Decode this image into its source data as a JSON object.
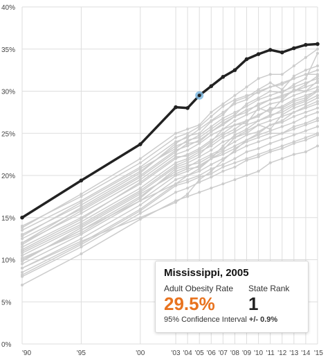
{
  "chart_data": {
    "type": "line",
    "x_tick_labels": [
      "'90",
      "'95",
      "'00",
      "'03",
      "'04",
      "'05",
      "'06",
      "'07",
      "'08",
      "'09",
      "'10",
      "'11",
      "'12",
      "'13",
      "'14",
      "'15"
    ],
    "x_ticks": [
      1990,
      1995,
      2000,
      2003,
      2004,
      2005,
      2006,
      2007,
      2008,
      2009,
      2010,
      2011,
      2012,
      2013,
      2014,
      2015
    ],
    "y_tick_labels": [
      "0%",
      "5%",
      "10%",
      "15%",
      "20%",
      "25%",
      "30%",
      "35%",
      "40%"
    ],
    "y_ticks": [
      0,
      5,
      10,
      15,
      20,
      25,
      30,
      35,
      40
    ],
    "xlim": [
      1990,
      2015
    ],
    "ylim": [
      0,
      40
    ],
    "grid": true,
    "highlight_series": {
      "name": "Mississippi",
      "x": [
        1990,
        1995,
        2000,
        2003,
        2004,
        2005,
        2006,
        2007,
        2008,
        2009,
        2010,
        2011,
        2012,
        2013,
        2014,
        2015
      ],
      "values": [
        15.0,
        19.4,
        23.7,
        28.1,
        28.0,
        29.5,
        30.6,
        31.7,
        32.5,
        33.8,
        34.4,
        34.9,
        34.6,
        35.1,
        35.5,
        35.6
      ],
      "color": "#222222"
    },
    "highlight_point": {
      "x": 2005,
      "y": 29.5,
      "color": "#7fb8e0"
    },
    "background_series_color": "#cccccc",
    "background_series": [
      {
        "x": [
          1990,
          1995,
          2000,
          2003,
          2004,
          2005,
          2006,
          2007,
          2008,
          2009,
          2010,
          2011,
          2012,
          2013,
          2014,
          2015
        ],
        "values": [
          14.0,
          17.5,
          21.5,
          24.5,
          25.0,
          25.8,
          27.0,
          28.2,
          29.0,
          29.5,
          29.8,
          30.5,
          30.8,
          31.5,
          32.0,
          32.5
        ]
      },
      {
        "x": [
          1990,
          1995,
          2000,
          2003,
          2004,
          2005,
          2006,
          2007,
          2008,
          2009,
          2010,
          2011,
          2012,
          2013,
          2014,
          2015
        ],
        "values": [
          13.5,
          17.0,
          21.0,
          24.0,
          24.5,
          25.5,
          26.5,
          27.5,
          28.5,
          29.0,
          30.0,
          30.5,
          31.0,
          31.5,
          32.0,
          32.0
        ]
      },
      {
        "x": [
          1990,
          1995,
          2000,
          2003,
          2004,
          2005,
          2006,
          2007,
          2008,
          2009,
          2010,
          2011,
          2012,
          2013,
          2014,
          2015
        ],
        "values": [
          13.0,
          16.5,
          20.5,
          23.5,
          24.0,
          24.8,
          25.8,
          26.8,
          27.5,
          28.2,
          29.0,
          29.5,
          30.0,
          30.5,
          31.0,
          31.5
        ]
      },
      {
        "x": [
          1990,
          1995,
          2000,
          2003,
          2004,
          2005,
          2006,
          2007,
          2008,
          2009,
          2010,
          2011,
          2012,
          2013,
          2014,
          2015
        ],
        "values": [
          12.5,
          16.0,
          20.0,
          23.0,
          23.5,
          24.2,
          25.2,
          26.2,
          27.0,
          27.8,
          28.3,
          29.0,
          29.3,
          30.0,
          30.5,
          31.0
        ]
      },
      {
        "x": [
          1990,
          1995,
          2000,
          2003,
          2004,
          2005,
          2006,
          2007,
          2008,
          2009,
          2010,
          2011,
          2012,
          2013,
          2014,
          2015
        ],
        "values": [
          12.0,
          15.5,
          19.5,
          22.5,
          23.0,
          23.8,
          24.8,
          25.5,
          26.5,
          27.2,
          27.8,
          28.5,
          28.8,
          29.5,
          30.0,
          30.5
        ]
      },
      {
        "x": [
          1990,
          1995,
          2000,
          2003,
          2004,
          2005,
          2006,
          2007,
          2008,
          2009,
          2010,
          2011,
          2012,
          2013,
          2014,
          2015
        ],
        "values": [
          11.5,
          15.0,
          19.0,
          22.0,
          22.5,
          23.2,
          24.2,
          25.0,
          26.0,
          26.5,
          27.2,
          27.8,
          28.2,
          29.0,
          29.5,
          30.0
        ]
      },
      {
        "x": [
          1990,
          1995,
          2000,
          2003,
          2004,
          2005,
          2006,
          2007,
          2008,
          2009,
          2010,
          2011,
          2012,
          2013,
          2014,
          2015
        ],
        "values": [
          11.0,
          14.5,
          18.5,
          21.5,
          22.0,
          22.8,
          23.5,
          24.5,
          25.2,
          26.0,
          26.5,
          27.2,
          27.5,
          28.3,
          28.8,
          29.5
        ]
      },
      {
        "x": [
          1990,
          1995,
          2000,
          2003,
          2004,
          2005,
          2006,
          2007,
          2008,
          2009,
          2010,
          2011,
          2012,
          2013,
          2014,
          2015
        ],
        "values": [
          10.5,
          14.0,
          18.0,
          21.0,
          21.5,
          22.2,
          23.0,
          24.0,
          24.5,
          25.3,
          26.0,
          26.5,
          27.0,
          27.5,
          28.2,
          28.8
        ]
      },
      {
        "x": [
          1990,
          1995,
          2000,
          2003,
          2004,
          2005,
          2006,
          2007,
          2008,
          2009,
          2010,
          2011,
          2012,
          2013,
          2014,
          2015
        ],
        "values": [
          10.0,
          13.5,
          17.5,
          20.5,
          21.0,
          21.8,
          22.5,
          23.2,
          24.0,
          24.8,
          25.2,
          26.0,
          26.3,
          27.0,
          27.5,
          28.0
        ]
      },
      {
        "x": [
          1990,
          1995,
          2000,
          2003,
          2004,
          2005,
          2006,
          2007,
          2008,
          2009,
          2010,
          2011,
          2012,
          2013,
          2014,
          2015
        ],
        "values": [
          9.5,
          13.0,
          17.0,
          20.0,
          20.5,
          21.2,
          22.0,
          22.8,
          23.5,
          24.2,
          24.8,
          25.3,
          25.8,
          26.3,
          27.0,
          27.5
        ]
      },
      {
        "x": [
          1990,
          1995,
          2000,
          2003,
          2004,
          2005,
          2006,
          2007,
          2008,
          2009,
          2010,
          2011,
          2012,
          2013,
          2014,
          2015
        ],
        "values": [
          9.0,
          12.5,
          16.5,
          19.5,
          20.0,
          20.5,
          21.3,
          22.0,
          22.8,
          23.5,
          24.0,
          24.5,
          25.0,
          25.5,
          26.0,
          26.5
        ]
      },
      {
        "x": [
          1990,
          1995,
          2000,
          2003,
          2004,
          2005,
          2006,
          2007,
          2008,
          2009,
          2010,
          2011,
          2012,
          2013,
          2014,
          2015
        ],
        "values": [
          8.5,
          12.0,
          16.0,
          19.0,
          19.5,
          20.0,
          20.8,
          21.3,
          22.0,
          22.8,
          23.2,
          23.8,
          24.3,
          24.8,
          25.3,
          25.8
        ]
      },
      {
        "x": [
          1990,
          1995,
          2000,
          2003,
          2004,
          2005,
          2006,
          2007,
          2008,
          2009,
          2010,
          2011,
          2012,
          2013,
          2014,
          2015
        ],
        "values": [
          8.0,
          11.5,
          15.5,
          18.0,
          18.5,
          19.2,
          19.8,
          20.5,
          21.0,
          21.8,
          22.2,
          22.8,
          23.2,
          23.8,
          24.2,
          24.8
        ]
      },
      {
        "x": [
          1990,
          1995,
          2000,
          2003,
          2004,
          2005,
          2006,
          2007,
          2008,
          2009,
          2010,
          2011,
          2012,
          2013,
          2014,
          2015
        ],
        "values": [
          7.0,
          10.7,
          14.8,
          17.0,
          17.5,
          18.0,
          18.5,
          19.0,
          19.5,
          20.0,
          20.5,
          21.5,
          22.0,
          22.5,
          22.8,
          23.5
        ]
      },
      {
        "x": [
          1990,
          1995,
          2000,
          2003,
          2004,
          2005,
          2006,
          2007,
          2008,
          2009,
          2010,
          2011,
          2012,
          2013,
          2014,
          2015
        ],
        "values": [
          9.0,
          12.2,
          15.0,
          16.8,
          17.8,
          19.5,
          20.5,
          21.8,
          23.0,
          24.2,
          25.0,
          26.0,
          26.5,
          27.5,
          28.0,
          28.5
        ]
      },
      {
        "x": [
          1990,
          1995,
          2000,
          2003,
          2004,
          2005,
          2006,
          2007,
          2008,
          2009,
          2010,
          2011,
          2012,
          2013,
          2014,
          2015
        ],
        "values": [
          12.0,
          16.2,
          20.3,
          23.8,
          24.7,
          25.0,
          26.4,
          27.2,
          28.8,
          29.3,
          30.2,
          31.0,
          30.2,
          31.8,
          32.5,
          33.0
        ]
      },
      {
        "x": [
          1990,
          1995,
          2000,
          2003,
          2004,
          2005,
          2006,
          2007,
          2008,
          2009,
          2010,
          2011,
          2012,
          2013,
          2014,
          2015
        ],
        "values": [
          13.8,
          17.8,
          22.0,
          25.0,
          25.5,
          26.0,
          27.5,
          28.5,
          29.5,
          30.5,
          31.5,
          32.0,
          32.0,
          33.0,
          34.0,
          35.0
        ]
      },
      {
        "x": [
          1990,
          1995,
          2000,
          2003,
          2004,
          2005,
          2006,
          2007,
          2008,
          2009,
          2010,
          2011,
          2012,
          2013,
          2014,
          2015
        ],
        "values": [
          11.2,
          14.8,
          19.2,
          22.2,
          22.3,
          23.0,
          24.0,
          25.5,
          26.0,
          26.2,
          28.0,
          27.5,
          29.0,
          30.2,
          30.0,
          31.2
        ]
      },
      {
        "x": [
          1990,
          1995,
          2000,
          2003,
          2004,
          2005,
          2006,
          2007,
          2008,
          2009,
          2010,
          2011,
          2012,
          2013,
          2014,
          2015
        ],
        "values": [
          10.2,
          13.2,
          17.3,
          20.8,
          21.2,
          21.5,
          22.3,
          23.0,
          24.5,
          25.0,
          26.0,
          25.5,
          27.2,
          28.0,
          28.5,
          29.2
        ]
      },
      {
        "x": [
          1990,
          1995,
          2000,
          2003,
          2004,
          2005,
          2006,
          2007,
          2008,
          2009,
          2010,
          2011,
          2012,
          2013,
          2014,
          2015
        ],
        "values": [
          12.8,
          16.8,
          20.8,
          23.2,
          24.2,
          24.5,
          25.5,
          26.5,
          27.2,
          28.5,
          29.2,
          30.0,
          29.8,
          30.8,
          31.5,
          34.5
        ]
      },
      {
        "x": [
          1990,
          1995,
          2000,
          2003,
          2004,
          2005,
          2006,
          2007,
          2008,
          2009,
          2010,
          2011,
          2012,
          2013,
          2014,
          2015
        ],
        "values": [
          10.8,
          14.2,
          18.2,
          21.2,
          21.8,
          22.5,
          23.8,
          24.8,
          25.5,
          26.5,
          27.0,
          28.0,
          28.0,
          28.8,
          29.2,
          30.2
        ]
      },
      {
        "x": [
          1990,
          1995,
          2000,
          2003,
          2004,
          2005,
          2006,
          2007,
          2008,
          2009,
          2010,
          2011,
          2012,
          2013,
          2014,
          2015
        ],
        "values": [
          9.8,
          13.8,
          17.8,
          20.2,
          20.8,
          21.0,
          22.0,
          22.5,
          23.2,
          24.0,
          24.5,
          25.0,
          25.0,
          25.8,
          26.2,
          26.8
        ]
      },
      {
        "x": [
          1990,
          1995,
          2000,
          2003,
          2004,
          2005,
          2006,
          2007,
          2008,
          2009,
          2010,
          2011,
          2012,
          2013,
          2014,
          2015
        ],
        "values": [
          11.8,
          15.8,
          19.8,
          22.8,
          23.8,
          24.0,
          25.2,
          26.0,
          27.0,
          27.5,
          28.5,
          29.0,
          29.5,
          30.0,
          30.8,
          31.8
        ]
      },
      {
        "x": [
          1990,
          1995,
          2000,
          2003,
          2004,
          2005,
          2006,
          2007,
          2008,
          2009,
          2010,
          2011,
          2012,
          2013,
          2014,
          2015
        ],
        "values": [
          8.2,
          11.8,
          15.8,
          18.8,
          19.2,
          19.8,
          20.2,
          21.0,
          21.5,
          22.0,
          22.5,
          23.0,
          23.5,
          24.0,
          24.5,
          25.0
        ]
      },
      {
        "x": [
          1990,
          1995,
          2000,
          2003,
          2004,
          2005,
          2006,
          2007,
          2008,
          2009,
          2010,
          2011,
          2012,
          2013,
          2014,
          2015
        ],
        "values": [
          10.0,
          13.5,
          17.0,
          19.0,
          20.0,
          20.8,
          22.0,
          23.5,
          24.8,
          25.5,
          26.5,
          27.0,
          27.8,
          28.5,
          29.0,
          30.0
        ]
      }
    ]
  },
  "tooltip": {
    "title": "Mississippi, 2005",
    "rate_label": "Adult Obesity Rate",
    "rate_value": "29.5%",
    "rank_label": "State Rank",
    "rank_value": "1",
    "ci_label": "95% Confidence Interval",
    "ci_value": "+/- 0.9%",
    "rate_color": "#e8731f"
  }
}
